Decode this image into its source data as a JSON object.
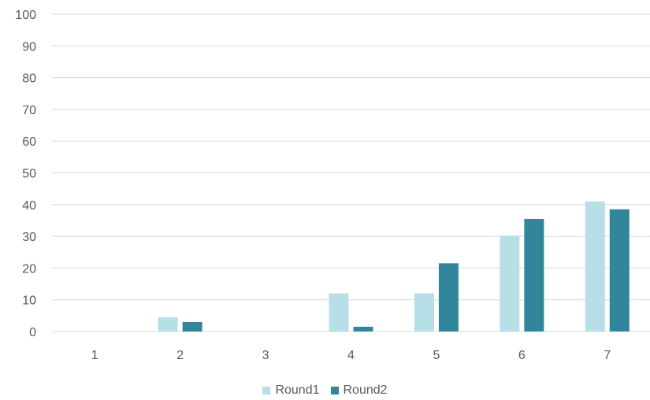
{
  "chart_data": {
    "type": "bar",
    "categories": [
      "1",
      "2",
      "3",
      "4",
      "5",
      "6",
      "7"
    ],
    "series": [
      {
        "name": "Round1",
        "color": "#b6dfe8",
        "values": [
          0,
          4.5,
          0,
          12,
          12,
          30.2,
          41
        ]
      },
      {
        "name": "Round2",
        "color": "#31869b",
        "values": [
          0,
          3,
          0,
          1.5,
          21.5,
          35.5,
          38.5
        ]
      }
    ],
    "title": "",
    "xlabel": "",
    "ylabel": "",
    "ylim": [
      0,
      100
    ],
    "yticks": [
      "0",
      "10",
      "20",
      "30",
      "40",
      "50",
      "60",
      "70",
      "80",
      "90",
      "100"
    ],
    "grid": true,
    "gridColor": "#d9d9d9",
    "legendPosition": "bottom"
  }
}
